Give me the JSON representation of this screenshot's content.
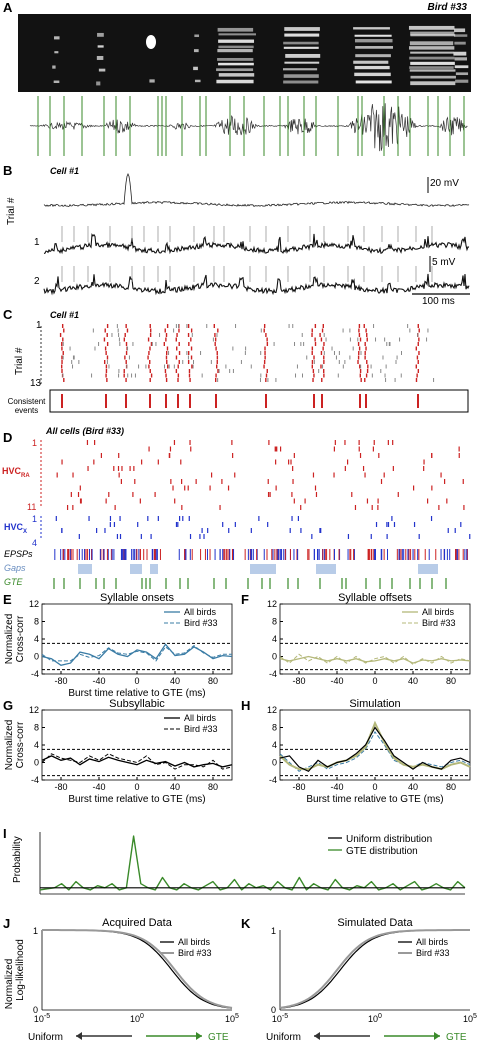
{
  "panels": {
    "A": {
      "letter": "A",
      "bird": "Bird #33"
    },
    "B": {
      "letter": "B",
      "cell": "Cell #1",
      "scale_mv_top": "20 mV",
      "scale_mv_bottom": "5 mV",
      "scale_ms": "100 ms",
      "trial_axis": "Trial #",
      "trials": [
        "1",
        "2"
      ]
    },
    "C": {
      "letter": "C",
      "cell": "Cell #1",
      "trial_axis": "Trial #",
      "trial_first": "1",
      "trial_last": "13",
      "consistent": "Consistent events"
    },
    "D": {
      "letter": "D",
      "title": "All cells (Bird #33)",
      "hvc_ra": "HVC",
      "hvc_ra_sub": "RA",
      "hvc_x": "HVC",
      "hvc_x_sub": "X",
      "n1": "1",
      "n11": "11",
      "nx1": "1",
      "nx4": "4",
      "epsps": "EPSPs",
      "gaps": "Gaps",
      "gte": "GTE"
    },
    "E": {
      "letter": "E",
      "title": "Syllable onsets"
    },
    "F": {
      "letter": "F",
      "title": "Syllable offsets"
    },
    "G": {
      "letter": "G",
      "title": "Subsyllabic"
    },
    "H": {
      "letter": "H",
      "title": "Simulation"
    },
    "I": {
      "letter": "I",
      "ylabel": "Probability",
      "legend": [
        "Uniform distribution",
        "GTE distribution"
      ]
    },
    "J": {
      "letter": "J",
      "title": "Acquired Data"
    },
    "K": {
      "letter": "K",
      "title": "Simulated Data"
    }
  },
  "shared": {
    "xcorr_ylabel": "Normalized Cross-corr",
    "xcorr_xlabel": "Burst time relative to GTE (ms)",
    "legend_all": "All birds",
    "legend_bird": "Bird #33",
    "ll_ylabel": "Normalized Log-likelihood",
    "uniform": "Uniform",
    "gte": "GTE"
  },
  "colors": {
    "onsets": "#3a7ca5",
    "offsets": "#b4b87a",
    "subsyl": "#000000",
    "green": "#3a8a2a",
    "red": "#cc2222",
    "blue": "#2233cc",
    "gaps": "#b8cce8",
    "gray": "#888888"
  },
  "chart_data": [
    {
      "panel": "E",
      "type": "line",
      "title": "Syllable onsets",
      "xlabel": "Burst time relative to GTE (ms)",
      "ylabel": "Normalized Cross-corr",
      "x": [
        -100,
        -90,
        -80,
        -70,
        -60,
        -50,
        -40,
        -30,
        -20,
        -10,
        0,
        10,
        20,
        30,
        40,
        50,
        60,
        70,
        80,
        90,
        100
      ],
      "xlim": [
        -100,
        100
      ],
      "ylim": [
        -4,
        12
      ],
      "yticks": [
        -4,
        0,
        4,
        8,
        12
      ],
      "xticks": [
        -80,
        -40,
        0,
        40,
        80
      ],
      "thresholds": [
        3,
        -3
      ],
      "series": [
        {
          "name": "All birds",
          "values": [
            0,
            -0.5,
            -2,
            -1.5,
            1,
            0.5,
            -0.5,
            1.8,
            0.5,
            0,
            1.5,
            1,
            -0.5,
            2.8,
            0.2,
            0.5,
            2.2,
            1,
            -0.5,
            0.2,
            0
          ]
        },
        {
          "name": "Bird #33",
          "values": [
            0.5,
            -1,
            -1,
            -1,
            0.5,
            -0.2,
            0.2,
            2,
            0.8,
            0.5,
            1.2,
            0.8,
            -1,
            2.2,
            0.5,
            0.8,
            2.5,
            0.8,
            -0.2,
            0.5,
            0.5
          ]
        }
      ]
    },
    {
      "panel": "F",
      "type": "line",
      "title": "Syllable offsets",
      "xlabel": "",
      "ylabel": "",
      "x": [
        -100,
        -90,
        -80,
        -70,
        -60,
        -50,
        -40,
        -30,
        -20,
        -10,
        0,
        10,
        20,
        30,
        40,
        50,
        60,
        70,
        80,
        90,
        100
      ],
      "xlim": [
        -100,
        100
      ],
      "ylim": [
        -4,
        12
      ],
      "yticks": [
        -4,
        0,
        4,
        8,
        12
      ],
      "xticks": [
        -80,
        -40,
        0,
        40,
        80
      ],
      "thresholds": [
        3,
        -3
      ],
      "series": [
        {
          "name": "All birds",
          "values": [
            -0.5,
            -1,
            -0.5,
            0,
            -0.5,
            -1,
            -0.5,
            -1,
            -0.5,
            -1.2,
            -1,
            -0.5,
            -1,
            -0.5,
            -1.5,
            -0.8,
            -1,
            -0.5,
            -1,
            -0.8,
            -1
          ]
        },
        {
          "name": "Bird #33",
          "values": [
            0,
            -1.5,
            0.5,
            -1,
            0,
            -1.5,
            0,
            -1.5,
            0,
            -1.5,
            -0.5,
            0,
            -1.5,
            0,
            -1.8,
            -0.5,
            -1.5,
            0,
            -1.5,
            -0.5,
            -1
          ]
        }
      ]
    },
    {
      "panel": "G",
      "type": "line",
      "title": "Subsyllabic",
      "xlabel": "Burst time relative to GTE (ms)",
      "ylabel": "Normalized Cross-corr",
      "x": [
        -100,
        -90,
        -80,
        -70,
        -60,
        -50,
        -40,
        -30,
        -20,
        -10,
        0,
        10,
        20,
        30,
        40,
        50,
        60,
        70,
        80,
        90,
        100
      ],
      "xlim": [
        -100,
        100
      ],
      "ylim": [
        -4,
        12
      ],
      "yticks": [
        -4,
        0,
        4,
        8,
        12
      ],
      "xticks": [
        -80,
        -40,
        0,
        40,
        80
      ],
      "thresholds": [
        3,
        -3
      ],
      "series": [
        {
          "name": "All birds",
          "values": [
            0.5,
            1.5,
            0.5,
            1,
            -0.5,
            0.8,
            0.2,
            1.2,
            0.5,
            0,
            -0.5,
            0.5,
            -0.2,
            0.2,
            -0.8,
            0,
            -1,
            -0.5,
            -0.2,
            -1,
            -0.5
          ]
        },
        {
          "name": "Bird #33",
          "values": [
            0,
            2,
            1,
            0.5,
            0,
            1.5,
            0.5,
            2,
            1,
            0.5,
            0,
            1.5,
            -0.5,
            0,
            -1.5,
            -0.5,
            -0.5,
            -1,
            0.5,
            -1.5,
            -1
          ]
        }
      ]
    },
    {
      "panel": "H",
      "type": "line",
      "title": "Simulation",
      "xlabel": "Burst time relative to GTE (ms)",
      "ylabel": "",
      "x": [
        -100,
        -90,
        -80,
        -70,
        -60,
        -50,
        -40,
        -30,
        -20,
        -10,
        0,
        10,
        20,
        30,
        40,
        50,
        60,
        70,
        80,
        90,
        100
      ],
      "xlim": [
        -100,
        100
      ],
      "ylim": [
        -4,
        12
      ],
      "yticks": [
        -4,
        0,
        4,
        8,
        12
      ],
      "xticks": [
        -80,
        -40,
        0,
        40,
        80
      ],
      "thresholds": [
        3,
        -3
      ],
      "series": [
        {
          "name": "Syllable onsets",
          "values": [
            2,
            0,
            -2,
            -1,
            0,
            -1.5,
            -0.5,
            0,
            1,
            3,
            7,
            4,
            0.5,
            -0.5,
            -1,
            0,
            -0.5,
            -1,
            0,
            0.5,
            -0.5
          ]
        },
        {
          "name": "Syllable offsets",
          "values": [
            1.5,
            -0.5,
            -1.5,
            -1.5,
            -0.5,
            -1,
            0,
            0.5,
            1.5,
            3.5,
            9,
            4.5,
            1,
            -0.5,
            -1,
            -0.5,
            -1,
            -1.5,
            -0.5,
            0,
            -1
          ]
        },
        {
          "name": "Subsyllabic",
          "values": [
            1,
            1.5,
            -1,
            -2,
            0.5,
            -1,
            0,
            0.5,
            2,
            4,
            8,
            5,
            1.5,
            0,
            -1.5,
            0,
            -1,
            -1.5,
            0.5,
            1,
            0
          ]
        }
      ]
    },
    {
      "panel": "I",
      "type": "line",
      "title": "",
      "xlabel": "",
      "ylabel": "Probability",
      "series": [
        {
          "name": "Uniform distribution",
          "values": [
            0.3,
            0.3
          ]
        },
        {
          "name": "GTE distribution",
          "values": [
            0.2,
            0.25,
            0.3,
            0.5,
            0.2,
            0.6,
            0.3,
            0.2,
            0.4,
            0.3,
            0.5,
            0.2,
            0.3,
            2.8,
            0.5,
            0.3,
            0.2,
            0.8,
            0.3,
            0.2,
            0.5,
            0.3,
            0.2,
            0.4,
            0.6,
            0.2,
            0.3,
            0.7,
            0.2,
            0.5,
            0.3,
            0.4,
            0.2,
            0.6,
            0.3,
            0.2,
            0.8,
            0.2,
            0.5,
            0.3,
            0.2,
            0.7,
            0.3,
            0.2,
            0.4,
            0.3,
            0.6,
            0.2,
            0.3,
            0.5,
            0.2,
            0.4,
            0.6,
            0.2,
            0.3,
            0.5,
            0.3,
            0.2,
            0.6,
            0.3
          ]
        }
      ]
    },
    {
      "panel": "J",
      "type": "line",
      "title": "Acquired Data",
      "xlabel": "",
      "ylabel": "Normalized Log-likelihood",
      "xscale": "log",
      "xlim": [
        1e-05,
        100000
      ],
      "ylim": [
        0,
        1
      ],
      "xticks": [
        "10^-5",
        "10^0",
        "10^5"
      ],
      "yticks": [
        0,
        1
      ],
      "series": [
        {
          "name": "All birds",
          "shape": "decreasing sigmoid"
        },
        {
          "name": "Bird #33",
          "shape": "decreasing sigmoid"
        }
      ]
    },
    {
      "panel": "K",
      "type": "line",
      "title": "Simulated Data",
      "xlabel": "",
      "ylabel": "",
      "xscale": "log",
      "xlim": [
        1e-05,
        100000
      ],
      "ylim": [
        0,
        1
      ],
      "xticks": [
        "10^-5",
        "10^0",
        "10^5"
      ],
      "yticks": [
        0,
        1
      ],
      "series": [
        {
          "name": "All birds",
          "shape": "increasing sigmoid"
        },
        {
          "name": "Bird #33",
          "shape": "increasing sigmoid"
        }
      ]
    }
  ]
}
